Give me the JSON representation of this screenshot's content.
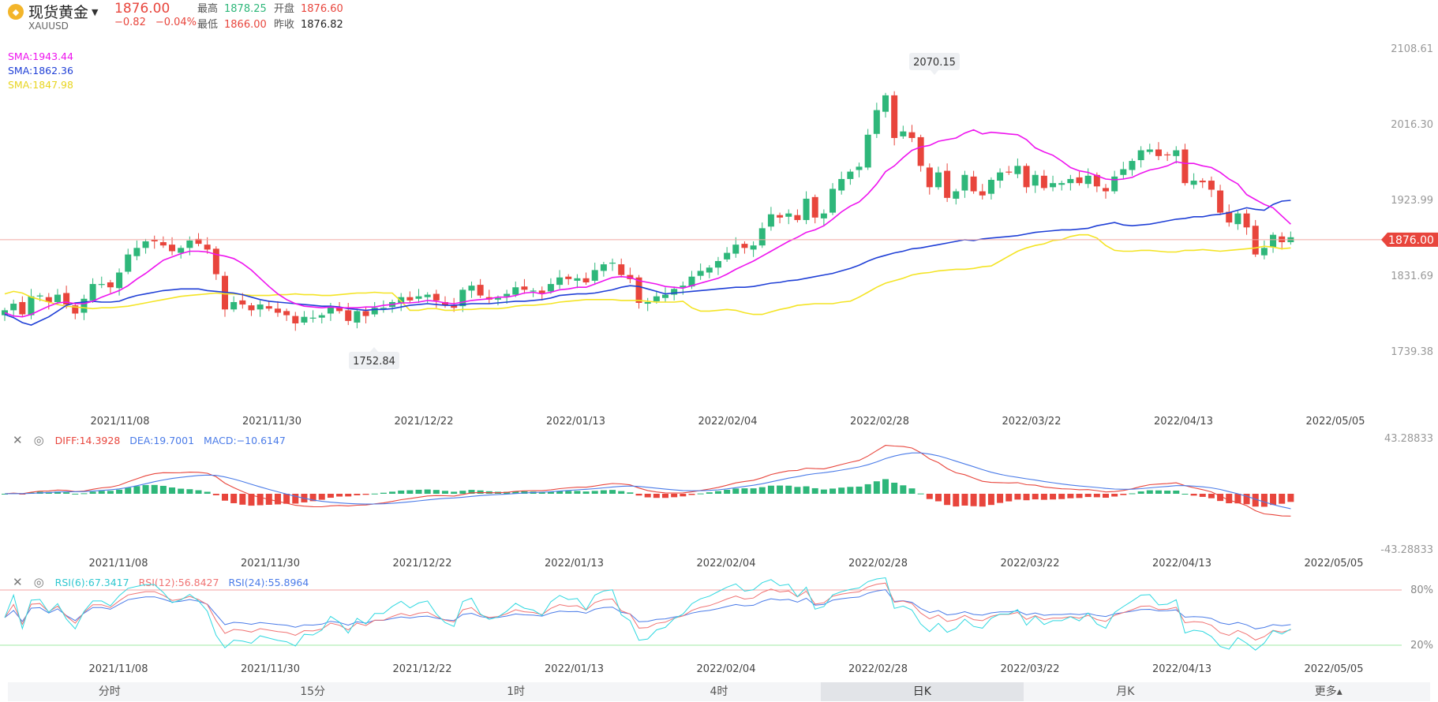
{
  "header": {
    "title": "现货黄金",
    "code": "XAUUSD",
    "price": "1876.00",
    "change": "−0.82",
    "change_pct": "−0.04%",
    "stats": [
      {
        "label": "最高",
        "value": "1878.25",
        "color": "up"
      },
      {
        "label": "开盘",
        "value": "1876.60",
        "color": "down"
      },
      {
        "label": "最低",
        "value": "1866.00",
        "color": "down"
      },
      {
        "label": "昨收",
        "value": "1876.82",
        "color": "neu"
      }
    ]
  },
  "legend": {
    "sma1": "SMA:1943.44",
    "sma2": "SMA:1862.36",
    "sma3": "SMA:1847.98"
  },
  "macd_legend": {
    "diff": "DIFF:14.3928",
    "dea": "DEA:19.7001",
    "macd": "MACD:−10.6147"
  },
  "rsi_legend": {
    "rsi6": "RSI(6):67.3417",
    "rsi12": "RSI(12):56.8427",
    "rsi24": "RSI(24):55.8964"
  },
  "colors": {
    "up": "#2eb77a",
    "down": "#e8453c",
    "sma1": "#ee14ee",
    "sma2": "#1f3fd6",
    "sma3": "#f4e425",
    "diff": "#e8453c",
    "dea": "#4a7be8",
    "rsi6": "#2fd8e0",
    "rsi12": "#f07373",
    "rsi24": "#4a7be8"
  },
  "tabs": [
    "分时",
    "15分",
    "1时",
    "4时",
    "日K",
    "月K",
    "更多▴"
  ],
  "active_tab": "日K",
  "chart_data": [
    {
      "type": "candlestick",
      "x_ticks": [
        "2021/11/08",
        "2021/11/30",
        "2021/12/22",
        "2022/01/13",
        "2022/02/04",
        "2022/02/28",
        "2022/03/22",
        "2022/04/13",
        "2022/05/05"
      ],
      "y_ticks": [
        "2108.61",
        "2016.30",
        "1923.99",
        "1831.69",
        "1739.38"
      ],
      "ylim": [
        1739.38,
        2108.61
      ],
      "current_price_label": "1876.00",
      "current_price": 1876.0,
      "annotations": [
        {
          "label": "2070.15",
          "value": 2070.15
        },
        {
          "label": "1752.84",
          "value": 1752.84
        }
      ],
      "series": {
        "close": [
          1790,
          1798,
          1785,
          1807,
          1808,
          1800,
          1809,
          1797,
          1786,
          1804,
          1822,
          1822,
          1818,
          1836,
          1858,
          1866,
          1874,
          1874,
          1869,
          1862,
          1866,
          1875,
          1871,
          1864,
          1834,
          1791,
          1800,
          1797,
          1790,
          1797,
          1792,
          1787,
          1784,
          1774,
          1782,
          1781,
          1784,
          1794,
          1789,
          1777,
          1789,
          1783,
          1793,
          1793,
          1800,
          1806,
          1802,
          1807,
          1809,
          1802,
          1796,
          1793,
          1815,
          1820,
          1808,
          1803,
          1805,
          1810,
          1818,
          1815,
          1814,
          1811,
          1822,
          1830,
          1828,
          1829,
          1824,
          1839,
          1846,
          1848,
          1833,
          1828,
          1799,
          1800,
          1807,
          1809,
          1816,
          1820,
          1831,
          1838,
          1842,
          1850,
          1860,
          1870,
          1866,
          1869,
          1890,
          1907,
          1903,
          1908,
          1900,
          1926,
          1903,
          1908,
          1938,
          1950,
          1959,
          1965,
          2004,
          2034,
          2052,
          2000,
          2008,
          2000,
          1966,
          1940,
          1958,
          1927,
          1935,
          1955,
          1935,
          1930,
          1949,
          1958,
          1958,
          1966,
          1940,
          1955,
          1939,
          1945,
          1945,
          1950,
          1945,
          1954,
          1941,
          1935,
          1953,
          1962,
          1972,
          1985,
          1986,
          1978,
          1979,
          1985,
          1945,
          1948,
          1946,
          1937,
          1909,
          1897,
          1908,
          1891,
          1858,
          1866,
          1882,
          1873,
          1879
        ],
        "sma1": [
          1787,
          1783,
          1782,
          1785,
          1790,
          1795,
          1799,
          1800,
          1798,
          1798,
          1801,
          1806,
          1810,
          1814,
          1820,
          1828,
          1835,
          1843,
          1851,
          1855,
          1859,
          1862,
          1862,
          1861,
          1858,
          1856,
          1853,
          1847,
          1839,
          1829,
          1819,
          1810,
          1803,
          1798,
          1795,
          1794,
          1793,
          1794,
          1793,
          1793,
          1793,
          1794,
          1794,
          1796,
          1797,
          1799,
          1799,
          1800,
          1802,
          1801,
          1799,
          1798,
          1800,
          1802,
          1803,
          1804,
          1806,
          1806,
          1808,
          1811,
          1812,
          1810,
          1812,
          1815,
          1816,
          1818,
          1818,
          1822,
          1826,
          1830,
          1831,
          1830,
          1826,
          1824,
          1822,
          1819,
          1818,
          1817,
          1820,
          1823,
          1826,
          1829,
          1834,
          1840,
          1845,
          1850,
          1856,
          1862,
          1868,
          1874,
          1879,
          1885,
          1888,
          1893,
          1901,
          1910,
          1917,
          1922,
          1932,
          1944,
          1959,
          1966,
          1976,
          1985,
          1989,
          1991,
          1996,
          1998,
          2000,
          2006,
          2010,
          2005,
          2007,
          2006,
          2005,
          2004,
          1998,
          1988,
          1983,
          1979,
          1972,
          1964,
          1960,
          1958,
          1954,
          1950,
          1949,
          1950,
          1952,
          1957,
          1961,
          1963,
          1966,
          1971,
          1969,
          1969,
          1966,
          1964,
          1958,
          1950,
          1944,
          1931,
          1925,
          1919,
          1915,
          1905,
          1895
        ],
        "sma2": [
          1785,
          1781,
          1775,
          1772,
          1777,
          1782,
          1789,
          1796,
          1799,
          1800,
          1801,
          1800,
          1800,
          1801,
          1805,
          1808,
          1810,
          1812,
          1814,
          1815,
          1816,
          1816,
          1816,
          1814,
          1813,
          1812,
          1811,
          1809,
          1806,
          1803,
          1801,
          1800,
          1799,
          1798,
          1797,
          1796,
          1795,
          1795,
          1794,
          1792,
          1791,
          1790,
          1791,
          1791,
          1792,
          1794,
          1796,
          1797,
          1798,
          1797,
          1796,
          1796,
          1797,
          1798,
          1798,
          1798,
          1799,
          1800,
          1801,
          1801,
          1802,
          1803,
          1805,
          1808,
          1809,
          1810,
          1810,
          1811,
          1813,
          1815,
          1818,
          1820,
          1819,
          1816,
          1813,
          1810,
          1811,
          1812,
          1813,
          1814,
          1815,
          1816,
          1817,
          1818,
          1818,
          1819,
          1821,
          1823,
          1824,
          1826,
          1827,
          1829,
          1831,
          1833,
          1835,
          1838,
          1841,
          1845,
          1850,
          1854,
          1857,
          1860,
          1862,
          1865,
          1866,
          1868,
          1870,
          1872,
          1874,
          1876,
          1875,
          1877,
          1878,
          1879,
          1880,
          1881,
          1883,
          1885,
          1886,
          1887,
          1888,
          1888,
          1889,
          1890,
          1893,
          1895,
          1897,
          1894,
          1893,
          1894,
          1895,
          1897,
          1899,
          1901,
          1902,
          1904,
          1904,
          1906,
          1907,
          1909,
          1912,
          1915,
          1913,
          1912,
          1919,
          1923,
          1924
        ],
        "sma3": [
          1810,
          1813,
          1811,
          1806,
          1803,
          1800,
          1797,
          1795,
          1794,
          1793,
          1792,
          1793,
          1793,
          1794,
          1795,
          1797,
          1799,
          1801,
          1803,
          1805,
          1807,
          1808,
          1809,
          1810,
          1811,
          1810,
          1810,
          1809,
          1808,
          1808,
          1808,
          1809,
          1809,
          1810,
          1809,
          1809,
          1808,
          1808,
          1809,
          1810,
          1811,
          1811,
          1812,
          1811,
          1811,
          1801,
          1790,
          1790,
          1792,
          1792,
          1790,
          1790,
          1791,
          1791,
          1792,
          1792,
          1792,
          1793,
          1795,
          1796,
          1796,
          1797,
          1798,
          1800,
          1801,
          1802,
          1803,
          1803,
          1803,
          1803,
          1802,
          1802,
          1802,
          1801,
          1800,
          1800,
          1800,
          1801,
          1793,
          1789,
          1789,
          1790,
          1791,
          1790,
          1787,
          1785,
          1785,
          1788,
          1791,
          1793,
          1796,
          1797,
          1798,
          1798,
          1798,
          1800,
          1801,
          1806,
          1812,
          1818,
          1823,
          1826,
          1829,
          1833,
          1835,
          1836,
          1838,
          1839,
          1840,
          1840,
          1841,
          1843,
          1844,
          1850,
          1856,
          1862,
          1866,
          1869,
          1871,
          1875,
          1876,
          1880,
          1882,
          1882,
          1878,
          1869,
          1863,
          1862,
          1862,
          1863,
          1863,
          1862,
          1861,
          1861,
          1863,
          1863,
          1864,
          1863,
          1862,
          1863,
          1864,
          1865,
          1866,
          1868,
          1867,
          1865,
          1866
        ]
      }
    },
    {
      "type": "bar",
      "name": "MACD",
      "ylim": [
        -43.28833,
        43.28833
      ],
      "y_ticks": [
        "43.28833",
        "-43.28833"
      ],
      "x_ticks": [
        "2021/11/08",
        "2021/11/30",
        "2021/12/22",
        "2022/01/13",
        "2022/02/04",
        "2022/02/28",
        "2022/03/22",
        "2022/04/13",
        "2022/05/05"
      ]
    },
    {
      "type": "line",
      "name": "RSI",
      "ylim": [
        0,
        100
      ],
      "y_ticks": [
        "80%",
        "20%"
      ],
      "x_ticks": [
        "2021/11/08",
        "2021/11/30",
        "2021/12/22",
        "2022/01/13",
        "2022/02/04",
        "2022/02/28",
        "2022/03/22",
        "2022/04/13",
        "2022/05/05"
      ]
    }
  ]
}
